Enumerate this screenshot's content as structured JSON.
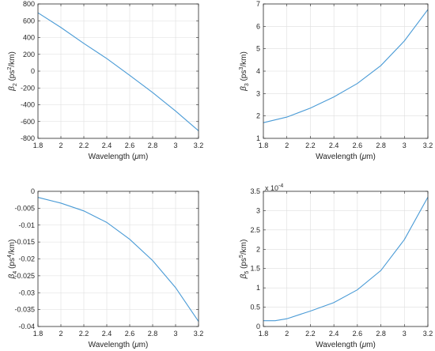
{
  "chart_data": [
    {
      "type": "line",
      "xlabel": "Wavelength (μm)",
      "xlabel_parts": [
        "Wavelength (",
        "μ",
        "m)"
      ],
      "ylabel_parts": {
        "sym": "β",
        "sub": "2",
        "pre": " (ps",
        "sup": "2",
        "post": "/km)"
      },
      "xlim": [
        1.8,
        3.2
      ],
      "ylim": [
        -800,
        800
      ],
      "xticks": [
        1.8,
        2,
        2.2,
        2.4,
        2.6,
        2.8,
        3,
        3.2
      ],
      "xtick_labels": [
        "1.8",
        "2",
        "2.2",
        "2.4",
        "2.6",
        "2.8",
        "3",
        "3.2"
      ],
      "yticks": [
        -800,
        -600,
        -400,
        -200,
        0,
        200,
        400,
        600,
        800
      ],
      "ytick_labels": [
        "-800",
        "-600",
        "-400",
        "-200",
        "0",
        "200",
        "400",
        "600",
        "800"
      ],
      "exponent_label": "",
      "grid": true,
      "x": [
        1.8,
        2.0,
        2.2,
        2.4,
        2.6,
        2.8,
        3.0,
        3.2
      ],
      "y": [
        695,
        520,
        330,
        150,
        -50,
        -255,
        -475,
        -710
      ]
    },
    {
      "type": "line",
      "xlabel": "Wavelength (μm)",
      "xlabel_parts": [
        "Wavelength (",
        "μ",
        "m)"
      ],
      "ylabel_parts": {
        "sym": "β",
        "sub": "3",
        "pre": " (ps",
        "sup": "3",
        "post": "/km)"
      },
      "xlim": [
        1.8,
        3.2
      ],
      "ylim": [
        1,
        7
      ],
      "xticks": [
        1.8,
        2,
        2.2,
        2.4,
        2.6,
        2.8,
        3,
        3.2
      ],
      "xtick_labels": [
        "1.8",
        "2",
        "2.2",
        "2.4",
        "2.6",
        "2.8",
        "3",
        "3.2"
      ],
      "yticks": [
        1,
        2,
        3,
        4,
        5,
        6,
        7
      ],
      "ytick_labels": [
        "1",
        "2",
        "3",
        "4",
        "5",
        "6",
        "7"
      ],
      "exponent_label": "",
      "grid": true,
      "x": [
        1.8,
        2.0,
        2.2,
        2.4,
        2.6,
        2.8,
        3.0,
        3.2
      ],
      "y": [
        1.7,
        1.95,
        2.35,
        2.85,
        3.45,
        4.25,
        5.35,
        6.75
      ]
    },
    {
      "type": "line",
      "xlabel": "Wavelength (μm)",
      "xlabel_parts": [
        "Wavelength (",
        "μ",
        "m)"
      ],
      "ylabel_parts": {
        "sym": "β",
        "sub": "4",
        "pre": " (ps",
        "sup": "4",
        "post": "/km)"
      },
      "xlim": [
        1.8,
        3.2
      ],
      "ylim": [
        -0.04,
        0
      ],
      "xticks": [
        1.8,
        2,
        2.2,
        2.4,
        2.6,
        2.8,
        3,
        3.2
      ],
      "xtick_labels": [
        "1.8",
        "2",
        "2.2",
        "2.4",
        "2.6",
        "2.8",
        "3",
        "3.2"
      ],
      "yticks": [
        -0.04,
        -0.035,
        -0.03,
        -0.025,
        -0.02,
        -0.015,
        -0.01,
        -0.005,
        0
      ],
      "ytick_labels": [
        "-0.04",
        "-0.035",
        "-0.03",
        "-0.025",
        "-0.02",
        "-0.015",
        "-0.01",
        "-0.005",
        "0"
      ],
      "exponent_label": "",
      "grid": true,
      "x": [
        1.8,
        2.0,
        2.2,
        2.4,
        2.6,
        2.8,
        3.0,
        3.2
      ],
      "y": [
        -0.0018,
        -0.0035,
        -0.0058,
        -0.0092,
        -0.0142,
        -0.0205,
        -0.0285,
        -0.0385
      ]
    },
    {
      "type": "line",
      "xlabel": "Wavelength (μm)",
      "xlabel_parts": [
        "Wavelength (",
        "μ",
        "m)"
      ],
      "ylabel_parts": {
        "sym": "β",
        "sub": "5",
        "pre": " (ps",
        "sup": "5",
        "post": "/km)"
      },
      "xlim": [
        1.8,
        3.2
      ],
      "ylim": [
        0,
        3.5
      ],
      "xticks": [
        1.8,
        2,
        2.2,
        2.4,
        2.6,
        2.8,
        3,
        3.2
      ],
      "xtick_labels": [
        "1.8",
        "2",
        "2.2",
        "2.4",
        "2.6",
        "2.8",
        "3",
        "3.2"
      ],
      "yticks": [
        0,
        0.5,
        1,
        1.5,
        2,
        2.5,
        3,
        3.5
      ],
      "ytick_labels": [
        "0",
        "0.5",
        "1",
        "1.5",
        "2",
        "2.5",
        "3",
        "3.5"
      ],
      "exponent_label": "x 10",
      "exponent_power": "-4",
      "grid": true,
      "x": [
        1.8,
        1.9,
        2.0,
        2.2,
        2.4,
        2.6,
        2.8,
        3.0,
        3.2
      ],
      "y": [
        0.15,
        0.15,
        0.2,
        0.4,
        0.62,
        0.95,
        1.45,
        2.25,
        3.35
      ]
    }
  ],
  "colors": {
    "line": "#4a9bd6",
    "grid": "#dedede",
    "axis": "#262626"
  }
}
